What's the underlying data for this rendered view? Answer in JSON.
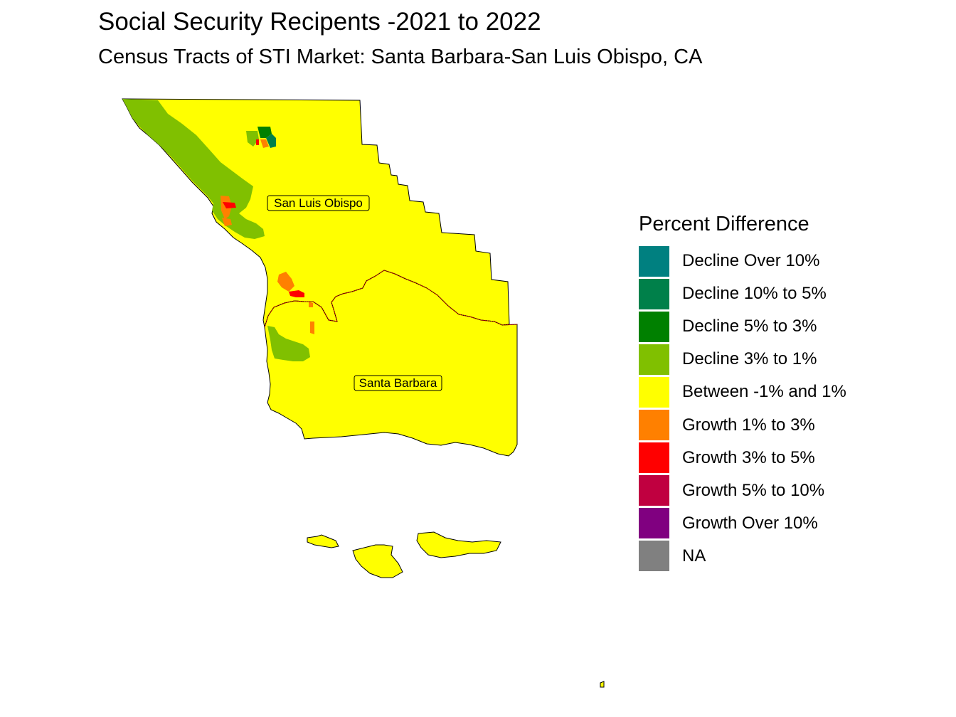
{
  "title": "Social Security Recipents -2021 to 2022",
  "subtitle": "Census Tracts of STI Market: Santa Barbara-San Luis Obispo, CA",
  "map_labels": {
    "san_luis_obispo": "San Luis Obispo",
    "santa_barbara": "Santa Barbara"
  },
  "legend": {
    "title": "Percent Difference",
    "items": [
      {
        "label": "Decline Over 10%",
        "color": "#008080"
      },
      {
        "label": "Decline 10% to 5%",
        "color": "#00804A"
      },
      {
        "label": "Decline 5% to 3%",
        "color": "#008000"
      },
      {
        "label": "Decline 3% to 1%",
        "color": "#80C000"
      },
      {
        "label": "Between -1% and 1%",
        "color": "#FFFF00"
      },
      {
        "label": "Growth 1% to 3%",
        "color": "#FF8000"
      },
      {
        "label": "Growth 3% to 5%",
        "color": "#FF0000"
      },
      {
        "label": "Growth 5% to 10%",
        "color": "#C00040"
      },
      {
        "label": "Growth Over 10%",
        "color": "#800080"
      },
      {
        "label": "NA",
        "color": "#808080"
      }
    ]
  }
}
